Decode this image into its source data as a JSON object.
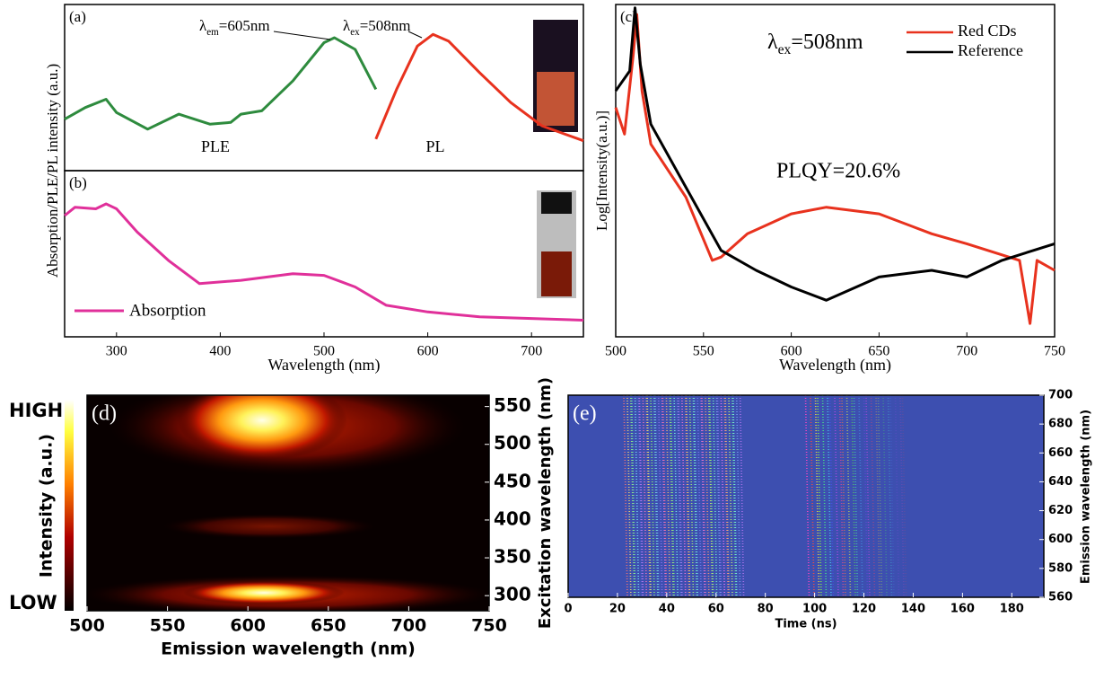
{
  "chart_data": [
    {
      "type": "line",
      "label": "(a)",
      "xlim": [
        250,
        750
      ],
      "ylim": [
        0,
        1
      ],
      "ylabel": "Absorption/PLE/PL intensity (a.u.)",
      "series": [
        {
          "name": "PLE",
          "color": "#2e8b3e",
          "x": [
            250,
            270,
            290,
            300,
            330,
            360,
            390,
            410,
            420,
            440,
            470,
            500,
            510,
            530,
            550
          ],
          "values": [
            0.31,
            0.38,
            0.43,
            0.35,
            0.25,
            0.34,
            0.28,
            0.29,
            0.34,
            0.36,
            0.54,
            0.77,
            0.8,
            0.73,
            0.49
          ]
        },
        {
          "name": "PL",
          "color": "#e8321e",
          "x": [
            550,
            570,
            590,
            605,
            620,
            650,
            680,
            710,
            750
          ],
          "values": [
            0.19,
            0.49,
            0.75,
            0.82,
            0.78,
            0.59,
            0.41,
            0.27,
            0.18
          ]
        }
      ],
      "annotations": [
        {
          "symbol": "λ",
          "sub": "em",
          "text": "=605nm"
        },
        {
          "symbol": "λ",
          "sub": "ex",
          "text": "=508nm"
        }
      ]
    },
    {
      "type": "line",
      "label": "(b)",
      "xlim": [
        250,
        750
      ],
      "ylim": [
        0,
        1
      ],
      "xticks": [
        300,
        400,
        500,
        600,
        700
      ],
      "xlabel": "Wavelength (nm)",
      "series": [
        {
          "name": "Absorption",
          "color": "#e0309a",
          "x": [
            250,
            260,
            280,
            290,
            300,
            320,
            350,
            380,
            420,
            470,
            500,
            530,
            560,
            600,
            650,
            700,
            750
          ],
          "values": [
            0.73,
            0.78,
            0.77,
            0.8,
            0.77,
            0.63,
            0.46,
            0.32,
            0.34,
            0.38,
            0.37,
            0.3,
            0.19,
            0.15,
            0.12,
            0.11,
            0.1
          ]
        }
      ]
    },
    {
      "type": "line",
      "label": "(c)",
      "xlim": [
        500,
        750
      ],
      "ylim": [
        0,
        1
      ],
      "xticks": [
        500,
        550,
        600,
        650,
        700,
        750
      ],
      "xlabel": "Wavelength (nm)",
      "ylabel": "Log[Intensity(a.u.)]",
      "series": [
        {
          "name": "Red CDs",
          "color": "#e8321e",
          "x": [
            500,
            505,
            510,
            512,
            515,
            520,
            540,
            555,
            560,
            575,
            600,
            620,
            650,
            680,
            700,
            730,
            736,
            740,
            750
          ],
          "values": [
            0.69,
            0.61,
            0.85,
            0.97,
            0.74,
            0.58,
            0.42,
            0.23,
            0.24,
            0.31,
            0.37,
            0.39,
            0.37,
            0.31,
            0.28,
            0.23,
            0.04,
            0.23,
            0.2
          ]
        },
        {
          "name": "Reference",
          "color": "#000000",
          "x": [
            500,
            508,
            511,
            514,
            520,
            540,
            560,
            580,
            600,
            620,
            650,
            680,
            700,
            720,
            750
          ],
          "values": [
            0.74,
            0.8,
            0.99,
            0.82,
            0.64,
            0.45,
            0.26,
            0.2,
            0.15,
            0.11,
            0.18,
            0.2,
            0.18,
            0.23,
            0.28
          ]
        }
      ],
      "annotations": [
        {
          "symbol": "λ",
          "sub": "ex",
          "text": "=508nm"
        }
      ],
      "quantum_yield": "PLQY=20.6%",
      "legend": "upper right"
    },
    {
      "type": "heatmap",
      "label": "(d)",
      "xlim": [
        500,
        750
      ],
      "ylim": [
        280,
        565
      ],
      "xticks": [
        500,
        550,
        600,
        650,
        700,
        750
      ],
      "yticks": [
        300,
        350,
        400,
        450,
        500,
        550
      ],
      "xlabel": "Emission wavelength (nm)",
      "ylabel": "Excitation wavelength (nm)",
      "colorbar": {
        "high": "HIGH",
        "low": "LOW",
        "label": "Intensity (a.u.)"
      }
    },
    {
      "type": "heatmap",
      "label": "(e)",
      "xlim": [
        0,
        193
      ],
      "ylim": [
        560,
        700
      ],
      "xticks": [
        0,
        20,
        40,
        60,
        80,
        100,
        120,
        140,
        160,
        180
      ],
      "yticks": [
        560,
        580,
        600,
        620,
        640,
        660,
        680,
        700
      ],
      "xlabel": "Time (ns)",
      "ylabel": "Emission wavelength (nm)"
    }
  ]
}
